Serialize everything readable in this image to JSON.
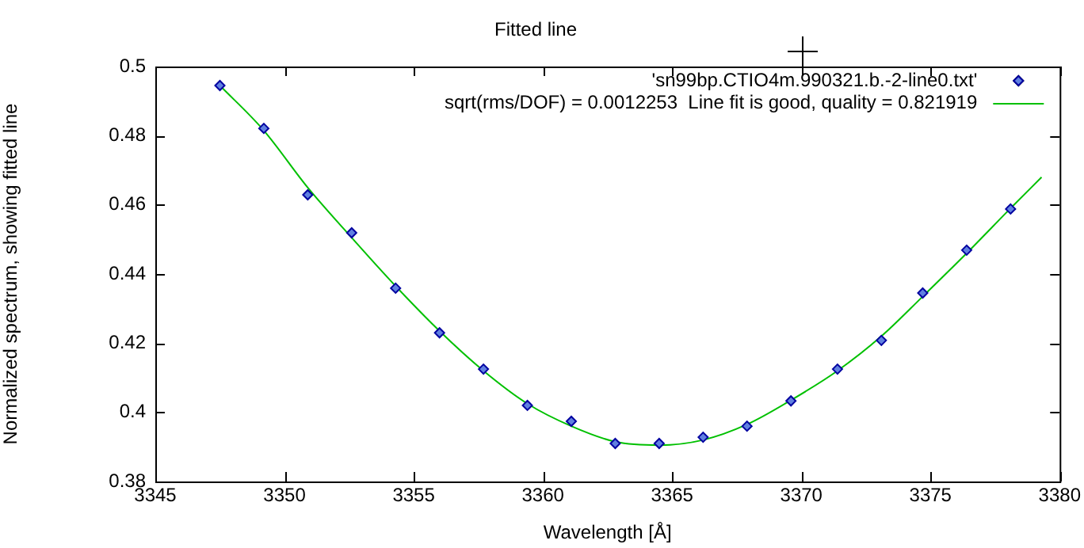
{
  "chart_data": {
    "type": "scatter",
    "title": "Fitted line",
    "xlabel": "Wavelength [Å]",
    "ylabel": "Normalized spectrum, showing fitted line",
    "xlim": [
      3345,
      3380
    ],
    "xticks": [
      3345,
      3350,
      3355,
      3360,
      3365,
      3370,
      3375,
      3380
    ],
    "ylim": [
      0.38,
      0.5
    ],
    "yticks": [
      0.38,
      0.4,
      0.42,
      0.44,
      0.46,
      0.48,
      0.5
    ],
    "grid": false,
    "legend": "top right",
    "series": [
      {
        "name": "'sn99bp.CTIO4m.990321.b.-2-line0.txt'",
        "color": "#0000a0",
        "marker": "diamond",
        "x": [
          3347.5,
          3349.2,
          3350.9,
          3352.6,
          3354.3,
          3356.0,
          3357.7,
          3359.4,
          3361.1,
          3362.8,
          3364.5,
          3366.2,
          3367.9,
          3369.6,
          3371.4,
          3373.1,
          3374.7,
          3376.4,
          3378.1
        ],
        "values": [
          0.4945,
          0.4821,
          0.4629,
          0.4519,
          0.4359,
          0.423,
          0.4125,
          0.402,
          0.3974,
          0.391,
          0.391,
          0.3928,
          0.396,
          0.4033,
          0.4125,
          0.4208,
          0.4345,
          0.4469,
          0.4588
        ]
      },
      {
        "name": "sqrt(rms/DOF) = 0.0012253  Line fit is good, quality = 0.821919",
        "color": "#00c000",
        "type": "line",
        "marker": "none",
        "line_style": "solid",
        "x": [
          3347.5,
          3349.2,
          3350.9,
          3352.6,
          3354.3,
          3356.0,
          3357.7,
          3359.4,
          3361.1,
          3362.8,
          3364.5,
          3366.2,
          3367.9,
          3369.6,
          3371.4,
          3373.1,
          3374.7,
          3376.4,
          3378.1,
          3379.3
        ],
        "values": [
          0.4945,
          0.4815,
          0.465,
          0.4505,
          0.4365,
          0.4235,
          0.412,
          0.4025,
          0.396,
          0.3915,
          0.3905,
          0.392,
          0.3965,
          0.4035,
          0.412,
          0.422,
          0.4335,
          0.446,
          0.459,
          0.468
        ]
      }
    ]
  }
}
